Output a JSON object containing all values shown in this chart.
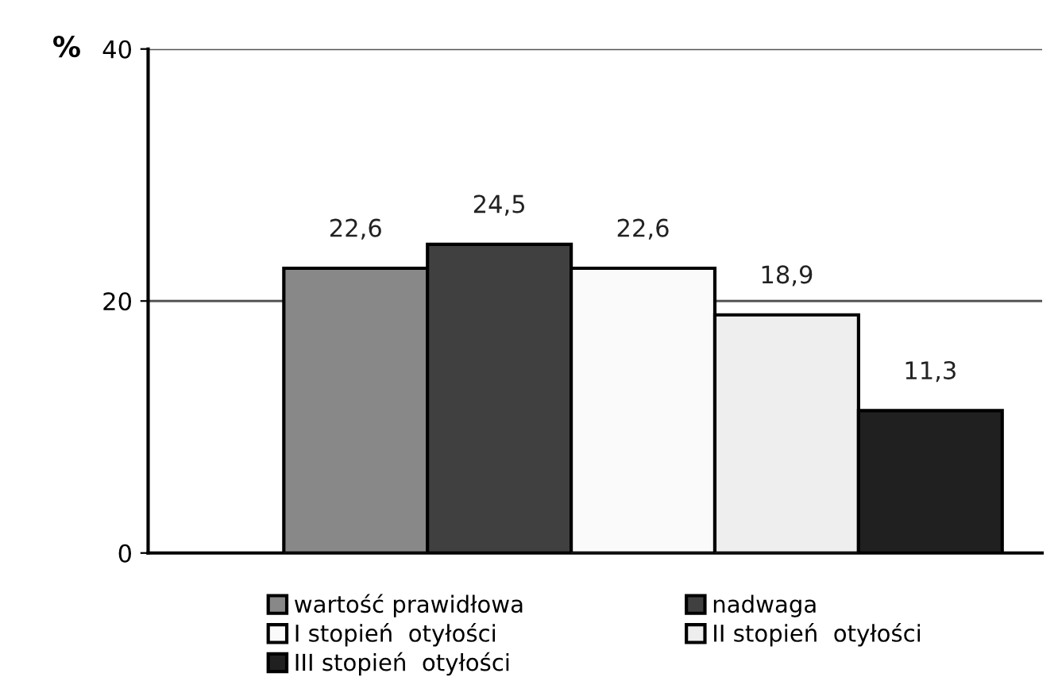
{
  "chart_data": {
    "type": "bar",
    "ylabel": "%",
    "categories": [
      null
    ],
    "series": [
      {
        "name": "wartość prawidłowa",
        "color": "#888888",
        "values": [
          22.6
        ],
        "value_labels": [
          "22,6"
        ]
      },
      {
        "name": "nadwaga",
        "color": "#404040",
        "values": [
          24.5
        ],
        "value_labels": [
          "24,5"
        ]
      },
      {
        "name": "I stopień  otyłości",
        "color": "#fafafa",
        "values": [
          22.6
        ],
        "value_labels": [
          "22,6"
        ]
      },
      {
        "name": "II stopień  otyłości",
        "color": "#eeeeee",
        "values": [
          18.9
        ],
        "value_labels": [
          "18,9"
        ]
      },
      {
        "name": "III stopień  otyłości",
        "color": "#202020",
        "values": [
          11.3
        ],
        "value_labels": [
          "11,3"
        ]
      }
    ],
    "ylim": [
      0,
      40
    ],
    "yticks": [
      0,
      20,
      40
    ],
    "grid": "y",
    "legend": "bottom"
  }
}
